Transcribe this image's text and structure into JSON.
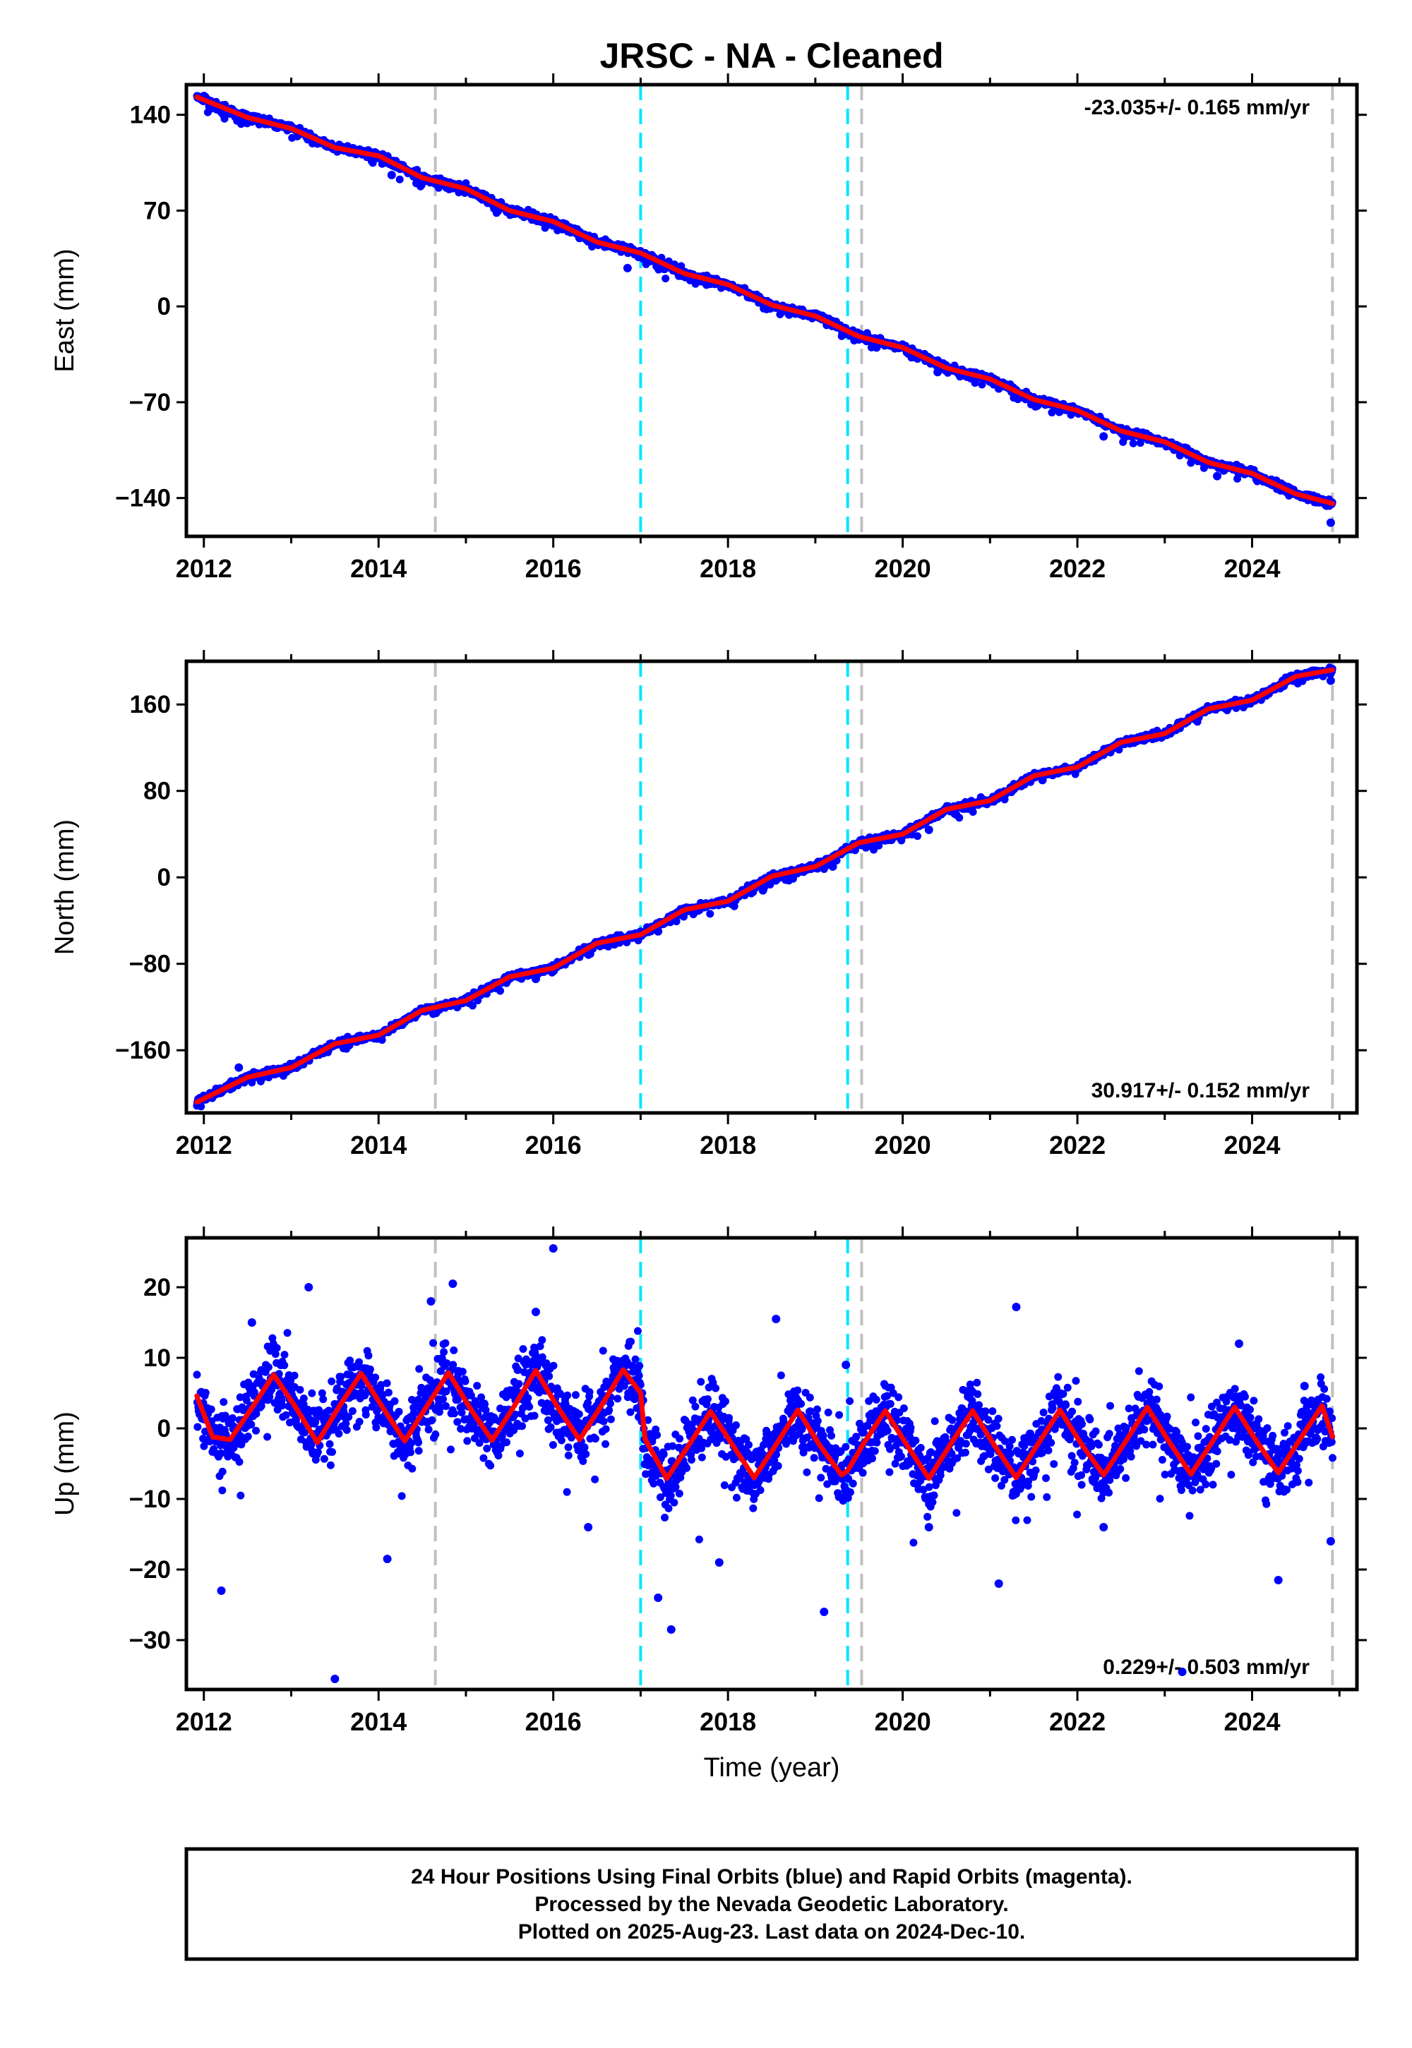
{
  "chart_data": {
    "type": "scatter",
    "title": "JRSC  - NA - Cleaned",
    "xlabel": "Time (year)",
    "xlim": [
      2011.8,
      2025.2
    ],
    "x_ticks": [
      2012,
      2014,
      2016,
      2018,
      2020,
      2022,
      2024
    ],
    "x_tick_labels": [
      "2012",
      "2014",
      "2016",
      "2018",
      "2020",
      "2022",
      "2024"
    ],
    "grid": false,
    "colors": {
      "observations": "#0000ff",
      "model": "#ff0000",
      "equipment_change": "#c0c0c0",
      "earthquake": "#00e5ff"
    },
    "vertical_lines": [
      {
        "x": 2014.65,
        "kind": "equipment_change"
      },
      {
        "x": 2017.0,
        "kind": "earthquake"
      },
      {
        "x": 2019.37,
        "kind": "earthquake"
      },
      {
        "x": 2019.53,
        "kind": "equipment_change"
      },
      {
        "x": 2024.92,
        "kind": "equipment_change"
      }
    ],
    "panels": [
      {
        "component": "east",
        "ylabel": "East (mm)",
        "ylim": [
          -168,
          162
        ],
        "y_ticks": [
          140,
          70,
          0,
          -70,
          -140
        ],
        "y_tick_labels": [
          "140",
          "70",
          "0",
          "−70",
          "−140"
        ],
        "rate_label": "-23.035+/- 0.165 mm/yr",
        "rate_placement": "top-right",
        "model": {
          "x": [
            2011.92,
            2012.5,
            2013.0,
            2013.5,
            2014.0,
            2014.5,
            2015.0,
            2015.5,
            2016.0,
            2016.5,
            2017.0,
            2017.5,
            2018.0,
            2018.5,
            2019.0,
            2019.5,
            2020.0,
            2020.5,
            2021.0,
            2021.5,
            2022.0,
            2022.5,
            2023.0,
            2023.5,
            2024.0,
            2024.5,
            2024.92
          ],
          "y": [
            153,
            138,
            130,
            116,
            110,
            94,
            86,
            70,
            62,
            47,
            39,
            24,
            16,
            1,
            -7,
            -22,
            -30,
            -45,
            -53,
            -68,
            -76,
            -91,
            -99,
            -114,
            -122,
            -137,
            -144
          ]
        },
        "observations": {
          "x": [
            2012.2,
            2013.3,
            2014.15,
            2015.4,
            2016.3,
            2016.85,
            2017.9,
            2018.7,
            2019.7,
            2020.4,
            2021.1,
            2022.3,
            2023.6,
            2024.9
          ],
          "y": [
            142,
            119,
            96,
            76,
            50,
            28,
            18,
            -6,
            -30,
            -48,
            -60,
            -95,
            -124,
            -158
          ]
        }
      },
      {
        "component": "north",
        "ylabel": "North (mm)",
        "ylim": [
          -218,
          200
        ],
        "y_ticks": [
          160,
          80,
          0,
          -80,
          -160
        ],
        "y_tick_labels": [
          "160",
          "80",
          "0",
          "−80",
          "−160"
        ],
        "rate_label": "30.917+/- 0.152 mm/yr",
        "rate_placement": "bottom-right",
        "model": {
          "x": [
            2011.92,
            2012.5,
            2013.0,
            2013.5,
            2014.0,
            2014.5,
            2015.0,
            2015.5,
            2016.0,
            2016.5,
            2017.0,
            2017.5,
            2018.0,
            2018.5,
            2019.0,
            2019.5,
            2020.0,
            2020.5,
            2021.0,
            2021.5,
            2022.0,
            2022.5,
            2023.0,
            2023.5,
            2024.0,
            2024.5,
            2024.92
          ],
          "y": [
            -208,
            -185,
            -176,
            -154,
            -146,
            -123,
            -114,
            -92,
            -84,
            -61,
            -53,
            -30,
            -22,
            1,
            10,
            32,
            40,
            63,
            71,
            94,
            102,
            125,
            133,
            156,
            164,
            186,
            192
          ]
        },
        "observations": {
          "x": [
            2012.4,
            2013.6,
            2014.9,
            2015.8,
            2016.7,
            2017.2,
            2018.4,
            2019.2,
            2020.3,
            2021.6,
            2022.6,
            2023.7,
            2024.9
          ],
          "y": [
            -176,
            -158,
            -120,
            -94,
            -62,
            -50,
            -12,
            10,
            44,
            90,
            124,
            156,
            182
          ]
        }
      },
      {
        "component": "up",
        "ylabel": "Up (mm)",
        "ylim": [
          -37,
          27
        ],
        "y_ticks": [
          20,
          10,
          0,
          -10,
          -20,
          -30
        ],
        "y_tick_labels": [
          "20",
          "10",
          "0",
          "−10",
          "−20",
          "−30"
        ],
        "rate_label": "0.229+/- 0.503 mm/yr",
        "rate_placement": "bottom-right",
        "model": {
          "x": [
            2011.92,
            2012.1,
            2012.3,
            2012.55,
            2012.8,
            2013.05,
            2013.3,
            2013.55,
            2013.8,
            2014.05,
            2014.3,
            2014.55,
            2014.8,
            2015.05,
            2015.3,
            2015.55,
            2015.8,
            2016.05,
            2016.3,
            2016.55,
            2016.8,
            2017.0,
            2017.05,
            2017.3,
            2017.55,
            2017.8,
            2018.05,
            2018.3,
            2018.55,
            2018.8,
            2019.05,
            2019.3,
            2019.37,
            2019.55,
            2019.8,
            2020.05,
            2020.3,
            2020.55,
            2020.8,
            2021.05,
            2021.3,
            2021.55,
            2021.8,
            2022.05,
            2022.3,
            2022.55,
            2022.8,
            2023.05,
            2023.3,
            2023.55,
            2023.8,
            2024.05,
            2024.3,
            2024.55,
            2024.8,
            2024.92
          ],
          "y": [
            4.6,
            -1.2,
            -1.6,
            2.9,
            7.6,
            3.0,
            -2.0,
            3.1,
            7.8,
            2.9,
            -1.8,
            3.1,
            7.9,
            2.8,
            -1.7,
            3.1,
            8.2,
            3.0,
            -1.6,
            3.2,
            8.3,
            5.0,
            -1.5,
            -7.1,
            -2.4,
            2.4,
            -2.3,
            -7.0,
            -2.3,
            2.6,
            -2.4,
            -6.6,
            -6.0,
            -2.2,
            2.5,
            -2.4,
            -7.1,
            -2.2,
            2.5,
            -2.4,
            -7.0,
            -2.2,
            2.6,
            -2.3,
            -6.6,
            -1.9,
            3.0,
            -1.9,
            -6.5,
            -1.8,
            3.0,
            -1.8,
            -6.3,
            -1.5,
            3.2,
            -1.2
          ]
        },
        "observations": {
          "x": [
            2012.2,
            2012.55,
            2013.2,
            2013.5,
            2014.1,
            2014.6,
            2014.85,
            2015.8,
            2016.0,
            2016.4,
            2017.2,
            2017.35,
            2017.9,
            2018.55,
            2019.1,
            2019.35,
            2020.3,
            2021.1,
            2021.3,
            2022.3,
            2023.2,
            2023.85,
            2024.3,
            2024.6,
            2024.9
          ],
          "y": [
            -23,
            15,
            20,
            -35.5,
            -18.5,
            18,
            20.5,
            16.5,
            25.5,
            -14,
            -24,
            -28.5,
            -19,
            15.5,
            -26,
            9,
            -14,
            -22,
            17.2,
            -14,
            -34.5,
            12,
            -21.5,
            6,
            -16
          ]
        }
      }
    ]
  },
  "footer": {
    "line1": "24 Hour Positions Using Final Orbits (blue) and Rapid Orbits (magenta).",
    "line2": "Processed by the Nevada Geodetic Laboratory.",
    "line3": "Plotted on 2025-Aug-23. Last data on 2024-Dec-10."
  }
}
